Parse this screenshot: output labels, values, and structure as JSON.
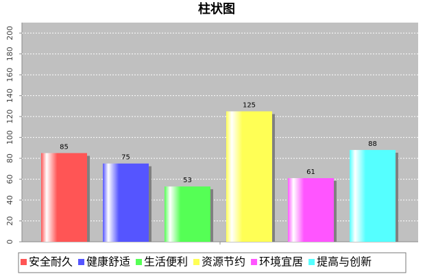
{
  "chart_data": {
    "type": "bar",
    "title": "柱状图",
    "categories": [
      null
    ],
    "series": [
      {
        "name": "安全耐久",
        "color": "#ff5555",
        "values": [
          85
        ]
      },
      {
        "name": "健康舒适",
        "color": "#5555ff",
        "values": [
          75
        ]
      },
      {
        "name": "生活便利",
        "color": "#55ff55",
        "values": [
          53
        ]
      },
      {
        "name": "资源节约",
        "color": "#ffff55",
        "values": [
          125
        ]
      },
      {
        "name": "环境宜居",
        "color": "#ff55ff",
        "values": [
          61
        ]
      },
      {
        "name": "提高与创新",
        "color": "#55ffff",
        "values": [
          88
        ]
      }
    ],
    "ylim": [
      0,
      210
    ],
    "yticks": [
      0,
      20,
      40,
      60,
      80,
      100,
      120,
      140,
      160,
      180,
      200
    ],
    "grid": true,
    "legend": "bottom"
  }
}
